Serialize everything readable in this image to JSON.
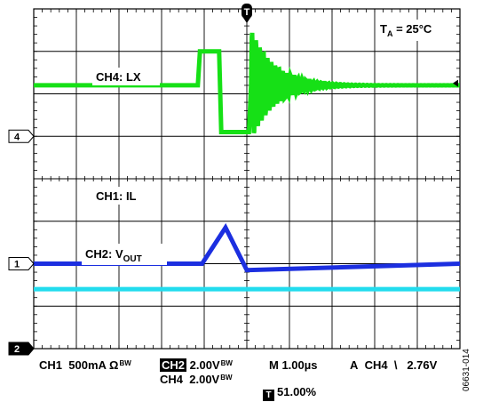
{
  "chart_data": {
    "type": "line",
    "title": "",
    "grid": true,
    "divisions": {
      "horizontal": 10,
      "vertical": 8
    },
    "time_per_div_us": 1.0,
    "ambient_label": {
      "main": "T",
      "sub": "A",
      "rest": " = 25°C"
    },
    "series": [
      {
        "name": "CH4: LX",
        "label_main": "CH4: LX",
        "label_sub": "",
        "channel_marker": "4",
        "color": "#16e016",
        "ground_div": 5.0,
        "t": [
          0,
          3.85,
          3.9,
          4.35,
          4.4,
          5.05,
          5.1,
          10
        ],
        "v": [
          1.2,
          1.2,
          2.0,
          2.0,
          0.1,
          0.1,
          1.2,
          1.2
        ],
        "ringing": {
          "start": 5.1,
          "amplitude": 1.3,
          "period": 0.09,
          "decay": 0.55
        }
      },
      {
        "name": "CH1: IL",
        "label_main": "CH1: IL",
        "label_sub": "",
        "channel_marker": "1",
        "color": "#1c2fe0",
        "ground_div": 2.0,
        "t": [
          0,
          3.95,
          4.5,
          5.0,
          10
        ],
        "v": [
          0.0,
          0.0,
          0.85,
          -0.15,
          0.0
        ]
      },
      {
        "name": "CH2: VOUT",
        "label_main": "CH2: V",
        "label_sub": "OUT",
        "channel_marker": "2",
        "color": "#22dcee",
        "ground_div": 0.0,
        "t": [
          0,
          10
        ],
        "v": [
          1.4,
          1.4
        ]
      }
    ],
    "trigger_marker": "T",
    "trigger_position_div": 5.0,
    "trigger_level_marker": "right"
  },
  "status": {
    "ch1": "CH1",
    "ch1_scale": "500mA Ω",
    "bw": "B",
    "bw_sub": "W",
    "ch2": "CH2",
    "ch2_scale": "2.00V",
    "ch4": "CH4",
    "ch4_scale": "2.00V",
    "timebase": "M 1.00µs",
    "trig_mode": "A",
    "trig_source": "CH4",
    "trig_slope": "\\",
    "trig_level": "2.76V",
    "trig_icon": "T",
    "trig_pos": "51.00%"
  },
  "doc_id": "06631-014"
}
